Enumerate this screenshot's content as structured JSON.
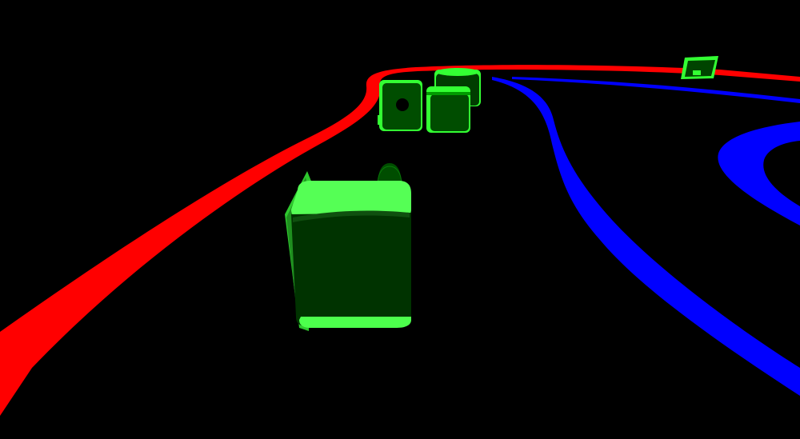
{
  "scene": {
    "background": "#000000",
    "lanes": {
      "left_boundary_color": "#ff0000",
      "right_boundary_color": "#0000ff"
    },
    "cars": [
      {
        "id": "player",
        "body_color": "#008000",
        "highlight": "#33ff33",
        "shadow": "#003300"
      },
      {
        "id": "opponent-1",
        "body_color": "#008000",
        "highlight": "#33ff33",
        "shadow": "#003300"
      },
      {
        "id": "opponent-2",
        "body_color": "#008000",
        "highlight": "#33ff33",
        "shadow": "#003300"
      },
      {
        "id": "opponent-3",
        "body_color": "#008000",
        "highlight": "#33ff33",
        "shadow": "#003300"
      },
      {
        "id": "opponent-far",
        "body_color": "#008000",
        "highlight": "#33ff33",
        "shadow": "#003300"
      }
    ]
  }
}
